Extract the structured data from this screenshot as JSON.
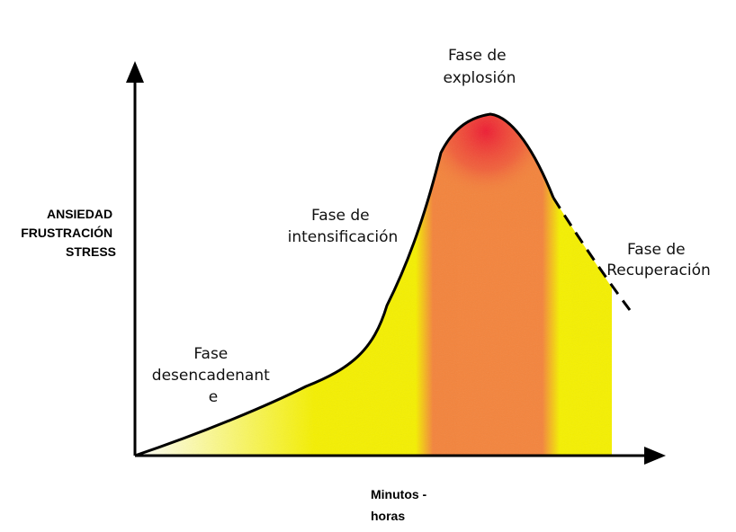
{
  "y_axis": {
    "label_lines": [
      "ANSIEDAD",
      "FRUSTRACIÓN",
      "STRESS"
    ]
  },
  "x_axis": {
    "label_lines": [
      "Minutos -",
      "horas"
    ]
  },
  "phases": [
    {
      "id": "desencadenante",
      "lines": [
        "Fase",
        "desencadenant",
        "e"
      ]
    },
    {
      "id": "intensificacion",
      "lines": [
        "Fase de",
        "intensificación"
      ]
    },
    {
      "id": "explosion",
      "lines": [
        "Fase de",
        "explosión"
      ]
    },
    {
      "id": "recuperacion",
      "lines": [
        "Fase de",
        "Recuperación"
      ]
    }
  ],
  "colors": {
    "yellow": "#f5f000",
    "orange": "#f4843c",
    "red": "#ee1c33",
    "curve": "#000000"
  }
}
